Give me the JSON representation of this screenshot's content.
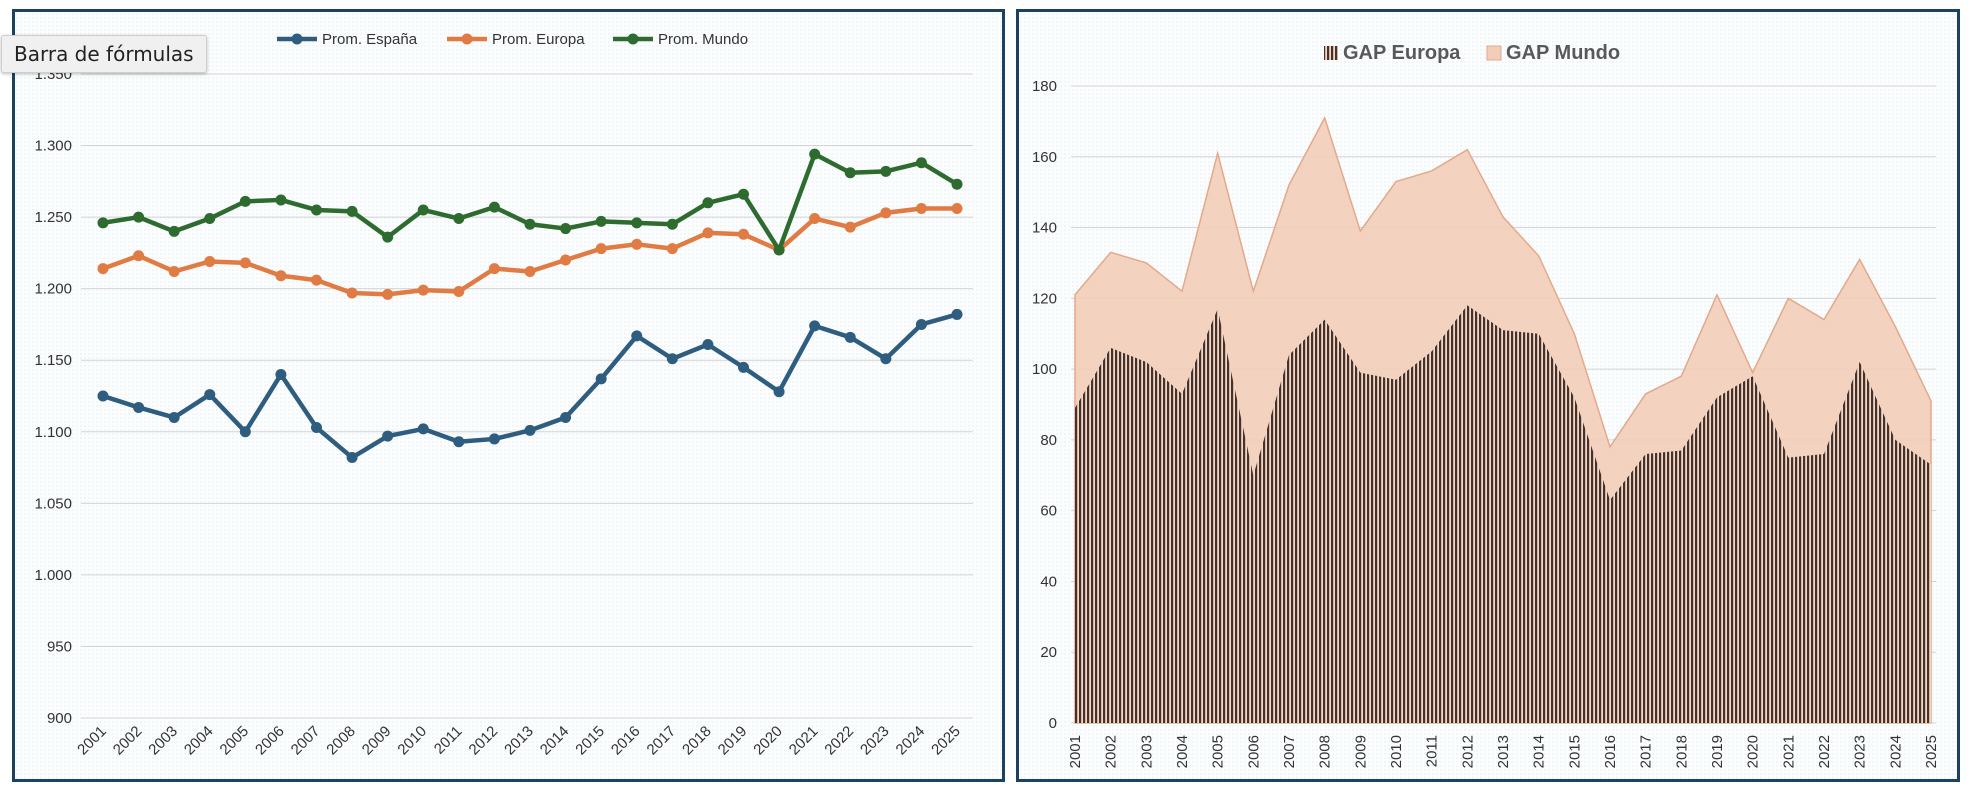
{
  "formula_bar_label": "Barra de fórmulas",
  "chart_data": [
    {
      "type": "line",
      "title": "",
      "categories": [
        "2001",
        "2002",
        "2003",
        "2004",
        "2005",
        "2006",
        "2007",
        "2008",
        "2009",
        "2010",
        "2011",
        "2012",
        "2013",
        "2014",
        "2015",
        "2016",
        "2017",
        "2018",
        "2019",
        "2020",
        "2021",
        "2022",
        "2023",
        "2024",
        "2025"
      ],
      "y_ticks": [
        "900",
        "950",
        "1.000",
        "1.050",
        "1.100",
        "1.150",
        "1.200",
        "1.250",
        "1.300",
        "1.350"
      ],
      "ylim": [
        900,
        1350
      ],
      "legend_position": "top",
      "series": [
        {
          "name": "Prom. España",
          "color": "#2e5d7f",
          "values": [
            1125,
            1117,
            1110,
            1126,
            1100,
            1140,
            1103,
            1082,
            1097,
            1102,
            1093,
            1095,
            1101,
            1110,
            1137,
            1167,
            1151,
            1161,
            1145,
            1128,
            1174,
            1166,
            1151,
            1175,
            1182
          ]
        },
        {
          "name": "Prom. Europa",
          "color": "#e07b43",
          "values": [
            1214,
            1223,
            1212,
            1219,
            1218,
            1209,
            1206,
            1197,
            1196,
            1199,
            1198,
            1214,
            1212,
            1220,
            1228,
            1231,
            1228,
            1239,
            1238,
            1227,
            1249,
            1243,
            1253,
            1256,
            1256
          ]
        },
        {
          "name": "Prom. Mundo",
          "color": "#2e6b2f",
          "values": [
            1246,
            1250,
            1240,
            1249,
            1261,
            1262,
            1255,
            1254,
            1236,
            1255,
            1249,
            1257,
            1245,
            1242,
            1247,
            1246,
            1245,
            1260,
            1266,
            1227,
            1294,
            1281,
            1282,
            1288,
            1273
          ]
        }
      ]
    },
    {
      "type": "area",
      "title": "",
      "categories": [
        "2001",
        "2002",
        "2003",
        "2004",
        "2005",
        "2006",
        "2007",
        "2008",
        "2009",
        "2010",
        "2011",
        "2012",
        "2013",
        "2014",
        "2015",
        "2016",
        "2017",
        "2018",
        "2019",
        "2020",
        "2021",
        "2022",
        "2023",
        "2024",
        "2025"
      ],
      "y_ticks": [
        "0",
        "20",
        "40",
        "60",
        "80",
        "100",
        "120",
        "140",
        "160",
        "180"
      ],
      "ylim": [
        0,
        180
      ],
      "legend_position": "top",
      "series": [
        {
          "name": "GAP Europa",
          "color": "#4a3027",
          "style": "vertical-hatch",
          "values": [
            89,
            106,
            102,
            93,
            117,
            70,
            104,
            114,
            99,
            97,
            105,
            118,
            111,
            110,
            92,
            63,
            76,
            77,
            92,
            98,
            75,
            76,
            102,
            80,
            73
          ]
        },
        {
          "name": "GAP Mundo",
          "color": "#f2cdb8",
          "style": "fill",
          "values": [
            121,
            133,
            130,
            122,
            161,
            122,
            152,
            171,
            139,
            153,
            156,
            162,
            143,
            132,
            110,
            78,
            93,
            98,
            121,
            99,
            120,
            114,
            131,
            112,
            91
          ]
        }
      ]
    }
  ]
}
